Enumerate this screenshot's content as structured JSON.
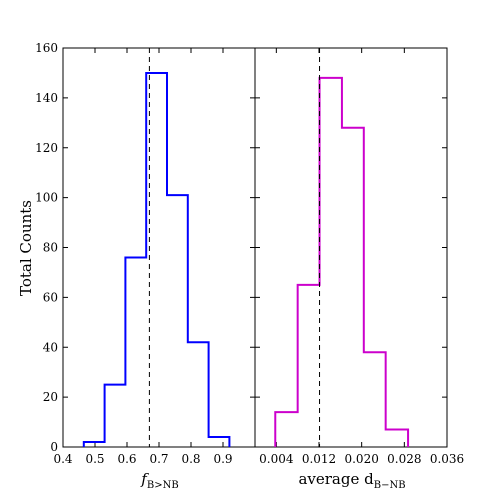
{
  "chart_data": [
    {
      "type": "histogram",
      "panel": "left",
      "ylabel": "Total Counts",
      "xlabel_main": "f",
      "xlabel_sub": "B>NB",
      "color": "#0000ff",
      "xlim": [
        0.4,
        1.0
      ],
      "ylim": [
        0,
        160
      ],
      "xticks": [
        0.4,
        0.5,
        0.6,
        0.7,
        0.8,
        0.9
      ],
      "xtick_labels": [
        "0.4",
        "0.5",
        "0.6",
        "0.7",
        "0.8",
        "0.9"
      ],
      "yticks": [
        0,
        20,
        40,
        60,
        80,
        100,
        120,
        140,
        160
      ],
      "ytick_labels": [
        "0",
        "20",
        "40",
        "60",
        "80",
        "100",
        "120",
        "140",
        "160"
      ],
      "bin_edges": [
        0.465,
        0.53,
        0.595,
        0.66,
        0.725,
        0.79,
        0.855,
        0.92
      ],
      "counts": [
        2,
        25,
        76,
        150,
        101,
        42,
        4
      ],
      "median_line": 0.67
    },
    {
      "type": "histogram",
      "panel": "right",
      "xlabel_main": "average d",
      "xlabel_sub": "B−NB",
      "color": "#cc00cc",
      "xlim": [
        0.0,
        0.036
      ],
      "ylim": [
        0,
        160
      ],
      "xticks": [
        0.004,
        0.012,
        0.02,
        0.028,
        0.036
      ],
      "xtick_labels": [
        "0.004",
        "0.012",
        "0.020",
        "0.028",
        "0.036"
      ],
      "bin_edges": [
        0.0038,
        0.008,
        0.0121,
        0.0163,
        0.0204,
        0.0245,
        0.0287
      ],
      "counts": [
        14,
        65,
        148,
        128,
        38,
        7
      ],
      "median_line": 0.0121
    }
  ]
}
